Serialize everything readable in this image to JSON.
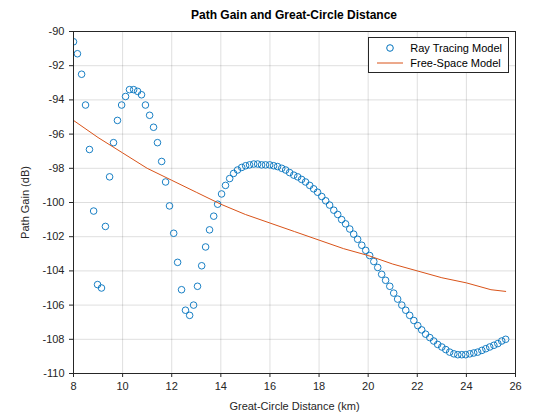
{
  "chart_data": {
    "type": "line",
    "title": "Path Gain and Great-Circle Distance",
    "x_label": "Great-Circle Distance (km)",
    "y_label": "Path Gain (dB)",
    "xlim": [
      8,
      26
    ],
    "xticks": [
      8,
      10,
      12,
      14,
      16,
      18,
      20,
      22,
      24,
      26
    ],
    "ylim": [
      -110,
      -90
    ],
    "yticks": [
      -110,
      -108,
      -106,
      -104,
      -102,
      -100,
      -98,
      -96,
      -94,
      -92,
      -90
    ],
    "grid": true,
    "legend": "northeast",
    "series": [
      {
        "name": "Ray Tracing Model",
        "type": "scatter",
        "marker": "circle",
        "color": "#0072BD",
        "x": [
          8.0,
          8.16,
          8.33,
          8.49,
          8.65,
          8.82,
          8.98,
          9.14,
          9.3,
          9.47,
          9.63,
          9.79,
          9.96,
          10.12,
          10.28,
          10.45,
          10.61,
          10.77,
          10.93,
          11.1,
          11.26,
          11.42,
          11.59,
          11.75,
          11.91,
          12.08,
          12.24,
          12.4,
          12.56,
          12.73,
          12.89,
          13.05,
          13.22,
          13.38,
          13.54,
          13.71,
          13.87,
          14.03,
          14.19,
          14.36,
          14.52,
          14.68,
          14.85,
          15.01,
          15.17,
          15.34,
          15.5,
          15.66,
          15.82,
          15.99,
          16.15,
          16.31,
          16.48,
          16.64,
          16.8,
          16.97,
          17.13,
          17.29,
          17.45,
          17.62,
          17.78,
          17.94,
          18.11,
          18.27,
          18.43,
          18.6,
          18.76,
          18.92,
          19.08,
          19.25,
          19.41,
          19.57,
          19.74,
          19.9,
          20.06,
          20.23,
          20.39,
          20.55,
          20.71,
          20.88,
          21.04,
          21.2,
          21.37,
          21.53,
          21.69,
          21.86,
          22.02,
          22.18,
          22.34,
          22.51,
          22.67,
          22.83,
          23.0,
          23.16,
          23.32,
          23.49,
          23.65,
          23.81,
          23.97,
          24.14,
          24.3,
          24.46,
          24.63,
          24.79,
          24.95,
          25.12,
          25.28,
          25.44,
          25.6
        ],
        "values": [
          -90.6,
          -91.3,
          -92.5,
          -94.3,
          -96.9,
          -100.5,
          -104.8,
          -105.0,
          -101.4,
          -98.5,
          -96.5,
          -95.2,
          -94.3,
          -93.8,
          -93.4,
          -93.4,
          -93.5,
          -93.7,
          -94.3,
          -94.9,
          -95.6,
          -96.5,
          -97.6,
          -98.8,
          -100.2,
          -101.8,
          -103.5,
          -105.1,
          -106.3,
          -106.6,
          -106.0,
          -104.9,
          -103.7,
          -102.6,
          -101.6,
          -100.8,
          -100.1,
          -99.5,
          -99.0,
          -98.6,
          -98.3,
          -98.1,
          -97.95,
          -97.85,
          -97.8,
          -97.75,
          -97.75,
          -97.8,
          -97.8,
          -97.8,
          -97.85,
          -97.9,
          -98.0,
          -98.1,
          -98.25,
          -98.4,
          -98.5,
          -98.65,
          -98.8,
          -99.0,
          -99.2,
          -99.4,
          -99.65,
          -99.9,
          -100.15,
          -100.45,
          -100.7,
          -101.0,
          -101.25,
          -101.55,
          -101.85,
          -102.15,
          -102.5,
          -102.8,
          -103.1,
          -103.45,
          -103.8,
          -104.2,
          -104.55,
          -104.9,
          -105.3,
          -105.65,
          -106.0,
          -106.3,
          -106.6,
          -106.9,
          -107.2,
          -107.45,
          -107.7,
          -107.9,
          -108.1,
          -108.3,
          -108.45,
          -108.6,
          -108.75,
          -108.85,
          -108.9,
          -108.9,
          -108.9,
          -108.85,
          -108.8,
          -108.75,
          -108.65,
          -108.55,
          -108.45,
          -108.35,
          -108.25,
          -108.1,
          -108.0
        ]
      },
      {
        "name": "Free-Space Model",
        "type": "line",
        "line_style": "solid",
        "color": "#D95319",
        "x": [
          8,
          9,
          10,
          11,
          12,
          13,
          14,
          15,
          16,
          17,
          18,
          19,
          20,
          21,
          22,
          23,
          24,
          25,
          25.6
        ],
        "values": [
          -95.2,
          -96.2,
          -97.1,
          -98.0,
          -98.7,
          -99.4,
          -100.1,
          -100.7,
          -101.2,
          -101.7,
          -102.2,
          -102.7,
          -103.1,
          -103.6,
          -104.0,
          -104.4,
          -104.7,
          -105.1,
          -105.2
        ]
      }
    ]
  }
}
